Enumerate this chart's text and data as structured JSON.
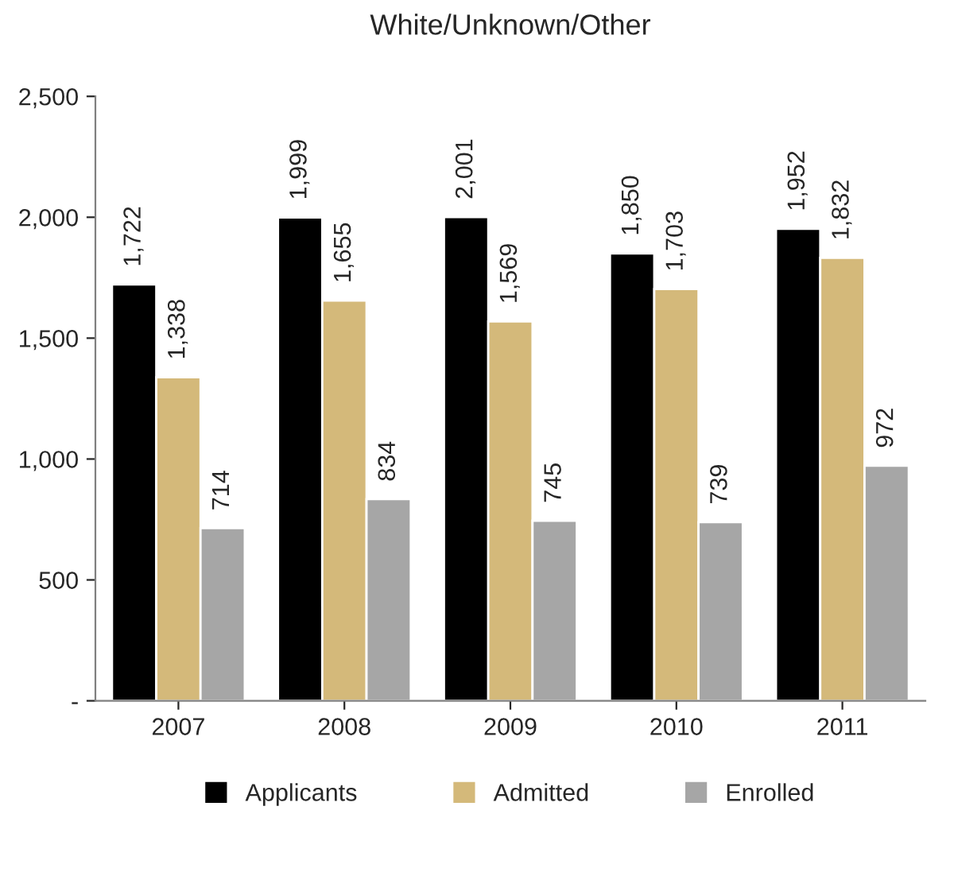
{
  "chart_data": {
    "type": "bar",
    "title": "White/Unknown/Other",
    "categories": [
      "2007",
      "2008",
      "2009",
      "2010",
      "2011"
    ],
    "series": [
      {
        "name": "Applicants",
        "color": "#000000",
        "values": [
          1722,
          1999,
          2001,
          1850,
          1952
        ],
        "value_labels": [
          "1,722",
          "1,999",
          "2,001",
          "1,850",
          "1,952"
        ]
      },
      {
        "name": "Admitted",
        "color": "#d4b97a",
        "values": [
          1338,
          1655,
          1569,
          1703,
          1832
        ],
        "value_labels": [
          "1,338",
          "1,655",
          "1,569",
          "1,703",
          "1,832"
        ]
      },
      {
        "name": "Enrolled",
        "color": "#a6a6a6",
        "values": [
          714,
          834,
          745,
          739,
          972
        ],
        "value_labels": [
          "714",
          "834",
          "745",
          "739",
          "972"
        ]
      }
    ],
    "ylim": [
      0,
      2500
    ],
    "yticks": [
      {
        "value": 0,
        "label": "-"
      },
      {
        "value": 500,
        "label": "500"
      },
      {
        "value": 1000,
        "label": "1,000"
      },
      {
        "value": 1500,
        "label": "1,500"
      },
      {
        "value": 2000,
        "label": "2,000"
      },
      {
        "value": 2500,
        "label": "2,500"
      }
    ],
    "grid": false,
    "legend": "bottom"
  }
}
